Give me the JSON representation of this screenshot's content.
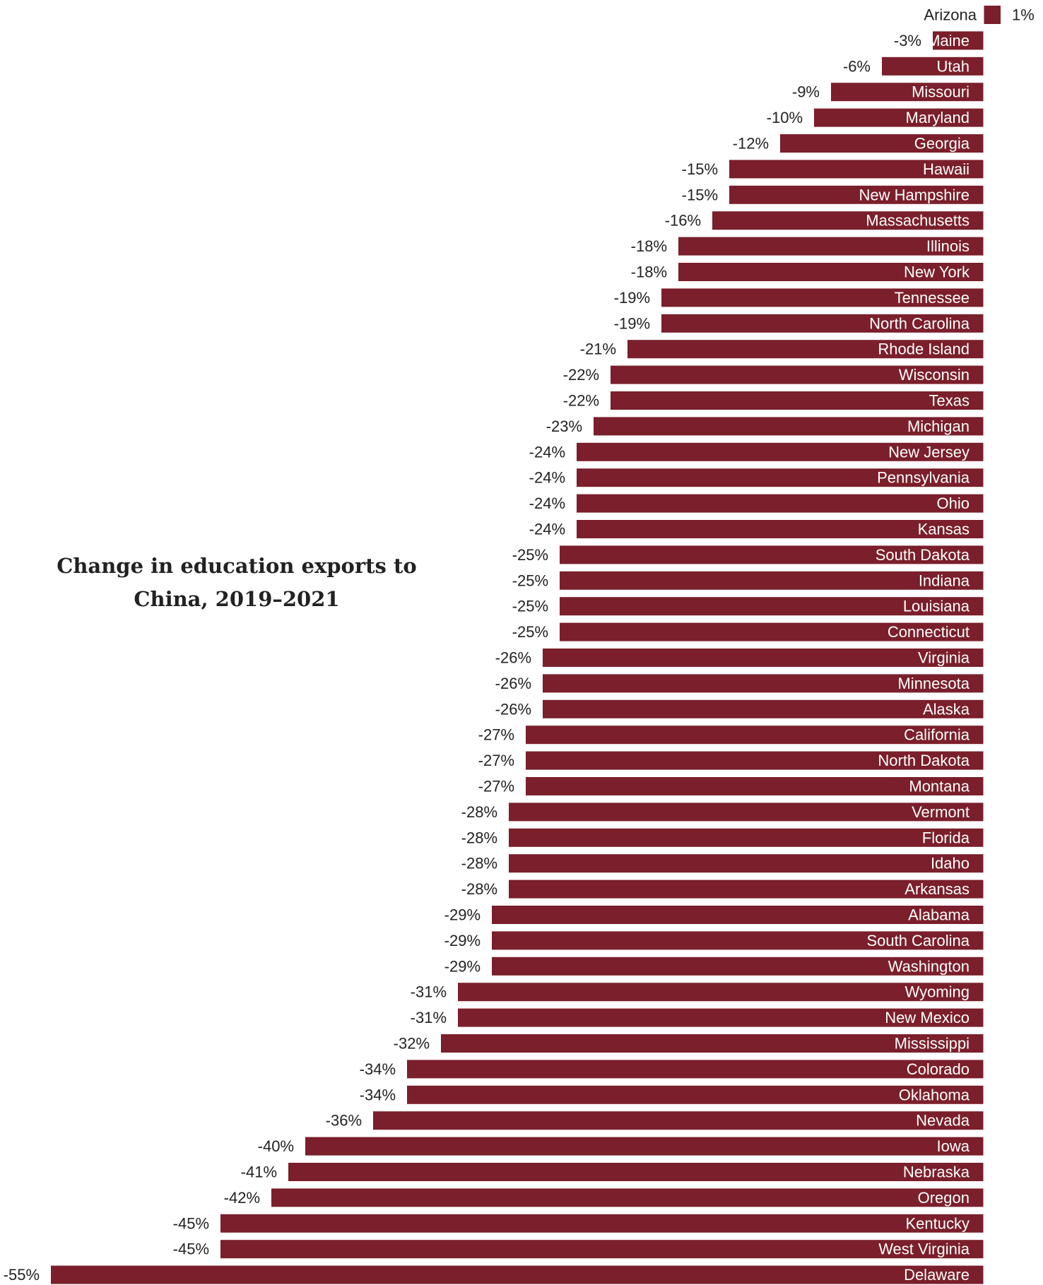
{
  "chart_data": {
    "type": "bar",
    "orientation": "horizontal",
    "title": "Change in education exports to China, 2019–2021",
    "xlabel": "",
    "ylabel": "",
    "grid": false,
    "legend": "none",
    "bar_color": "#7a1f2b",
    "value_suffix": "%",
    "categories": [
      "Arizona",
      "Maine",
      "Utah",
      "Missouri",
      "Maryland",
      "Georgia",
      "Hawaii",
      "New Hampshire",
      "Massachusetts",
      "Illinois",
      "New York",
      "Tennessee",
      "North Carolina",
      "Rhode Island",
      "Wisconsin",
      "Texas",
      "Michigan",
      "New Jersey",
      "Pennsylvania",
      "Ohio",
      "Kansas",
      "South Dakota",
      "Indiana",
      "Louisiana",
      "Connecticut",
      "Virginia",
      "Minnesota",
      "Alaska",
      "California",
      "North Dakota",
      "Montana",
      "Vermont",
      "Florida",
      "Idaho",
      "Arkansas",
      "Alabama",
      "South Carolina",
      "Washington",
      "Wyoming",
      "New Mexico",
      "Mississippi",
      "Colorado",
      "Oklahoma",
      "Nevada",
      "Iowa",
      "Nebraska",
      "Oregon",
      "Kentucky",
      "West Virginia",
      "Delaware"
    ],
    "values": [
      1,
      -3,
      -6,
      -9,
      -10,
      -12,
      -15,
      -15,
      -16,
      -18,
      -18,
      -19,
      -19,
      -21,
      -22,
      -22,
      -23,
      -24,
      -24,
      -24,
      -24,
      -25,
      -25,
      -25,
      -25,
      -26,
      -26,
      -26,
      -27,
      -27,
      -27,
      -28,
      -28,
      -28,
      -28,
      -29,
      -29,
      -29,
      -31,
      -31,
      -32,
      -34,
      -34,
      -36,
      -40,
      -41,
      -42,
      -45,
      -45,
      -55
    ],
    "xlim": [
      -55,
      1
    ]
  }
}
